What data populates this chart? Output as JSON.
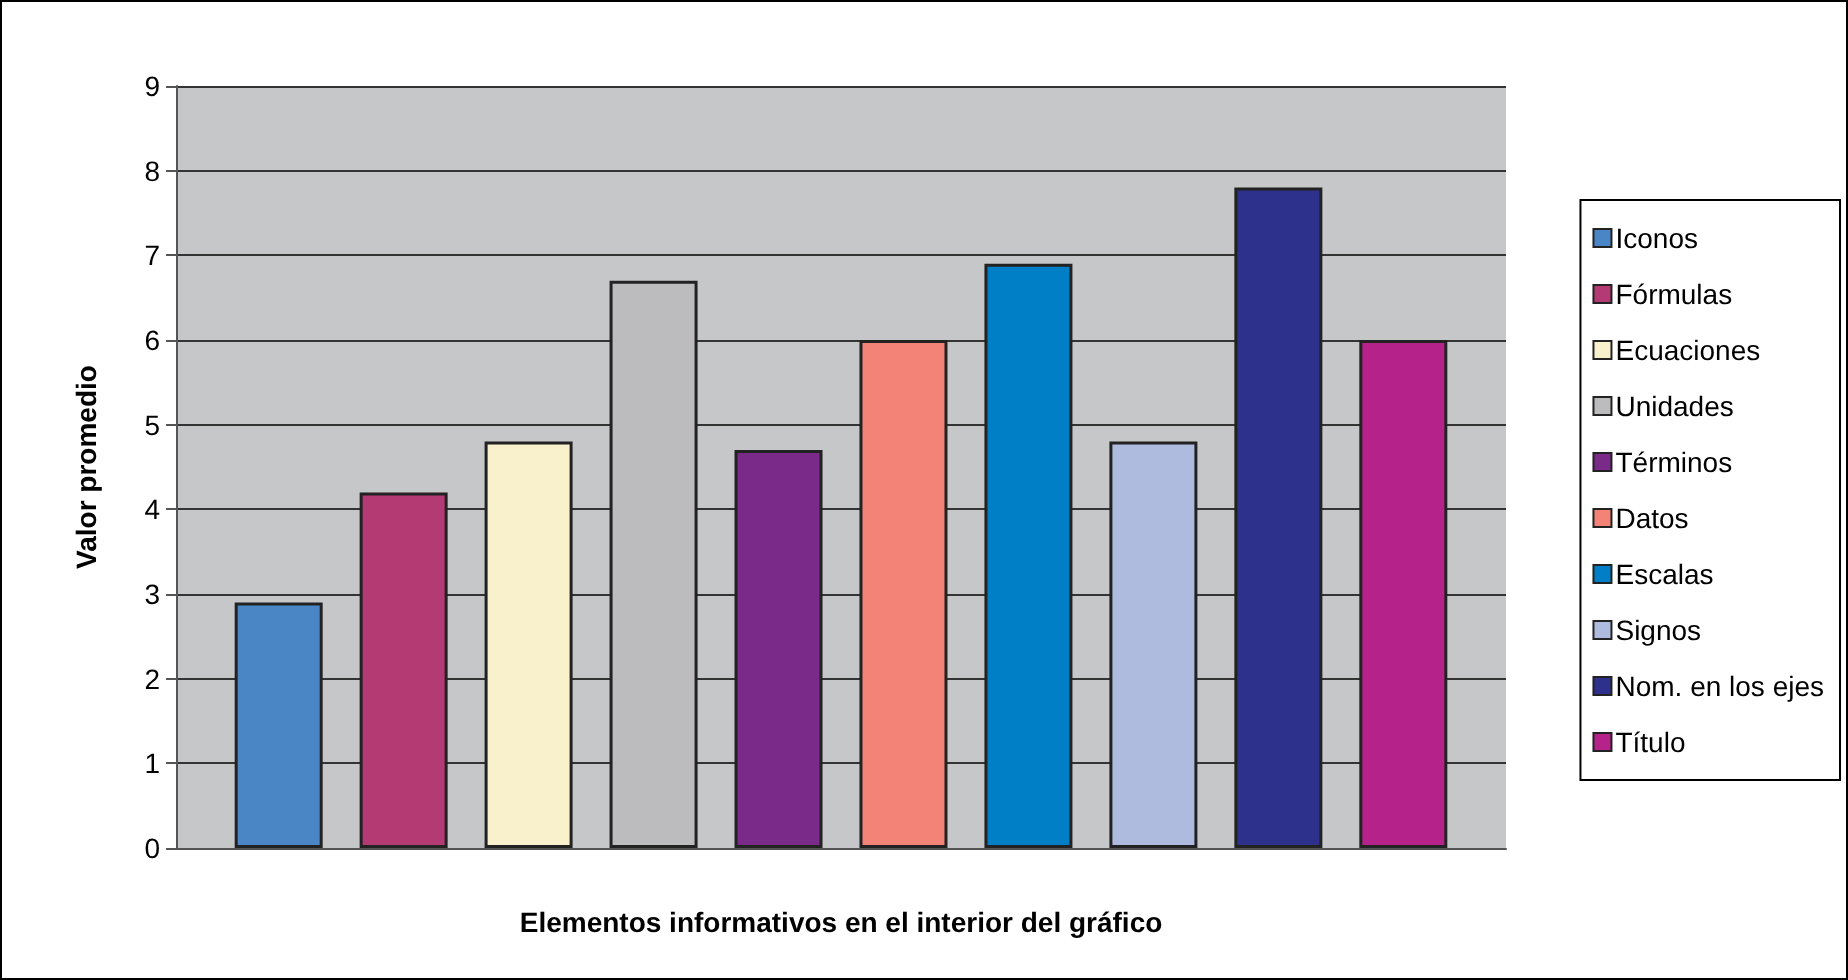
{
  "chart_data": {
    "type": "bar",
    "xlabel": "Elementos informativos en el interior del gráfico",
    "ylabel": "Valor promedio",
    "categories": [
      null
    ],
    "ylim": [
      0,
      9
    ],
    "yticks": [
      0,
      1,
      2,
      3,
      4,
      5,
      6,
      7,
      8,
      9
    ],
    "grid": "y",
    "legend": "right",
    "series": [
      {
        "name": "Iconos",
        "color": "#4a86c6",
        "values": [
          2.9
        ]
      },
      {
        "name": "Fórmulas",
        "color": "#b33a73",
        "values": [
          4.2
        ]
      },
      {
        "name": "Ecuaciones",
        "color": "#f9f0cc",
        "values": [
          4.8
        ]
      },
      {
        "name": "Unidades",
        "color": "#bcbcbe",
        "values": [
          6.7
        ]
      },
      {
        "name": "Términos",
        "color": "#7a2a88",
        "values": [
          4.7
        ]
      },
      {
        "name": "Datos",
        "color": "#f38377",
        "values": [
          6.0
        ]
      },
      {
        "name": "Escalas",
        "color": "#007fc6",
        "values": [
          6.9
        ]
      },
      {
        "name": "Signos",
        "color": "#aebbdf",
        "values": [
          4.8
        ]
      },
      {
        "name": "Nom. en los ejes",
        "color": "#2d318c",
        "values": [
          7.8
        ]
      },
      {
        "name": "Título",
        "color": "#b5228a",
        "values": [
          6.0
        ]
      }
    ]
  }
}
